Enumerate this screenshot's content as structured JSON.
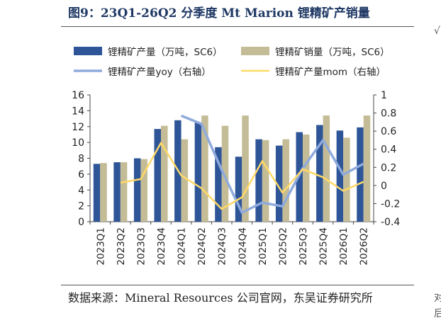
{
  "header": {
    "title": "图9：23Q1-26Q2 分季度 Mt Marion 锂精矿产销量"
  },
  "footer": {
    "source": "数据来源：Mineral Resources 公司官网，东吴证券研究所"
  },
  "edge": {
    "top_right": "√",
    "bottom_right": "对\n后"
  },
  "colors": {
    "production": "#2e5597",
    "sales": "#c4bc96",
    "yoy": "#8faadc",
    "mom": "#ffd966"
  },
  "chart_data": {
    "type": "bar",
    "categories": [
      "2023Q1",
      "2023Q2",
      "2023Q3",
      "2023Q4",
      "2024Q1",
      "2024Q2",
      "2024Q3",
      "2024Q4",
      "2025Q1",
      "2025Q2",
      "2025Q3",
      "2025Q4",
      "2026Q1",
      "2026Q2"
    ],
    "series": [
      {
        "name": "锂精矿产量（万吨，SC6）",
        "kind": "bar",
        "axis": "left",
        "values": [
          7.3,
          7.5,
          8.0,
          11.7,
          12.8,
          12.5,
          9.4,
          8.2,
          10.4,
          9.6,
          11.3,
          12.2,
          11.5,
          11.9
        ]
      },
      {
        "name": "锂精矿销量（万吨，SC6）",
        "kind": "bar",
        "axis": "left",
        "values": [
          7.4,
          7.5,
          7.9,
          12.1,
          10.4,
          13.4,
          12.1,
          13.4,
          10.3,
          10.4,
          11.0,
          13.4,
          10.6,
          13.4
        ]
      },
      {
        "name": "锂精矿产量yoy（右轴）",
        "kind": "line",
        "axis": "right",
        "values": [
          null,
          null,
          null,
          null,
          0.77,
          0.68,
          0.17,
          -0.3,
          -0.19,
          -0.23,
          0.19,
          0.5,
          0.12,
          0.24
        ]
      },
      {
        "name": "锂精矿产量mom（右轴）",
        "kind": "line",
        "axis": "right",
        "values": [
          null,
          0.03,
          0.07,
          0.47,
          0.11,
          -0.03,
          -0.26,
          -0.13,
          0.27,
          -0.08,
          0.18,
          0.09,
          -0.06,
          0.04
        ]
      }
    ],
    "ylim_left": [
      0,
      16
    ],
    "yticks_left": [
      "0",
      "2",
      "4",
      "6",
      "8",
      "10",
      "12",
      "14",
      "16"
    ],
    "ylim_right": [
      -0.4,
      1
    ],
    "yticks_right": [
      "-0.4",
      "-0.2",
      "0",
      "0.2",
      "0.4",
      "0.6",
      "0.8",
      "1"
    ],
    "legend": "top",
    "grid": false
  }
}
